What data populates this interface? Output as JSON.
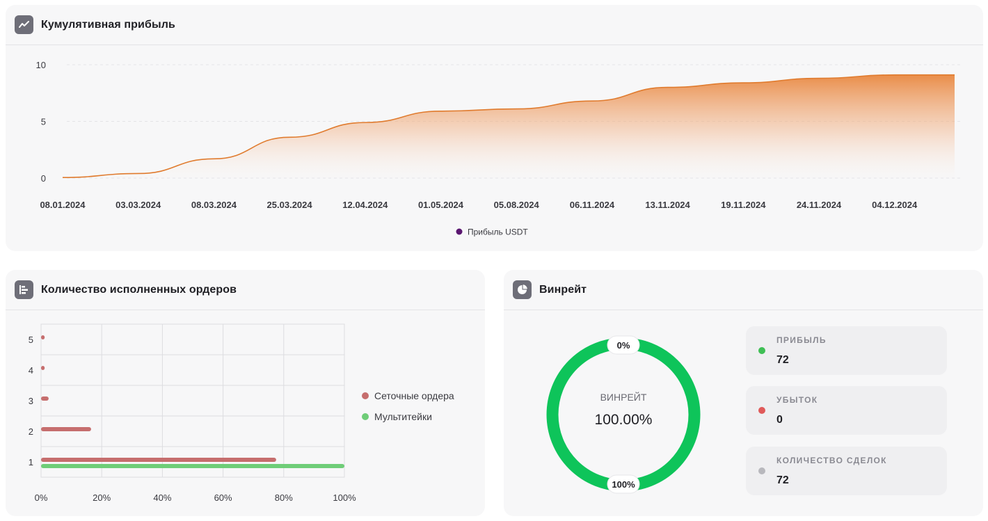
{
  "cards": {
    "cumulative": {
      "title": "Кумулятивная прибыль",
      "icon": "line-chart-icon"
    },
    "orders": {
      "title": "Количество исполненных ордеров",
      "icon": "bar-chart-icon"
    },
    "winrate": {
      "title": "Винрейт",
      "icon": "pie-chart-icon"
    }
  },
  "chart_data": [
    {
      "type": "area",
      "title": "Кумулятивная прибыль",
      "x_ticks": [
        "08.01.2024",
        "03.03.2024",
        "08.03.2024",
        "25.03.2024",
        "12.04.2024",
        "01.05.2024",
        "05.08.2024",
        "06.11.2024",
        "13.11.2024",
        "19.11.2024",
        "24.11.2024",
        "04.12.2024"
      ],
      "y_ticks": [
        "0",
        "5",
        "10"
      ],
      "ylim": [
        0,
        10
      ],
      "grid": "horizontal dashed",
      "legend_position": "bottom",
      "series": [
        {
          "name": "Прибыль USDT",
          "legend_color": "#5a1670",
          "line_color": "#e07b2e",
          "x": [
            "08.01.2024",
            "03.03.2024",
            "08.03.2024",
            "25.03.2024",
            "12.04.2024",
            "01.05.2024",
            "05.08.2024",
            "06.11.2024",
            "13.11.2024",
            "19.11.2024",
            "24.11.2024",
            "04.12.2024"
          ],
          "values": [
            0.05,
            0.4,
            1.7,
            3.6,
            4.9,
            5.9,
            6.1,
            6.8,
            8.0,
            8.4,
            8.8,
            9.1
          ]
        }
      ]
    },
    {
      "type": "bar",
      "orientation": "horizontal",
      "title": "Количество исполненных ордеров",
      "categories": [
        "1",
        "2",
        "3",
        "4",
        "5"
      ],
      "x_ticks": [
        "0%",
        "20%",
        "40%",
        "60%",
        "80%",
        "100%"
      ],
      "xlim": [
        0,
        100
      ],
      "legend_position": "right",
      "series": [
        {
          "name": "Сеточные ордера",
          "color": "#c66e6e",
          "values": [
            77.5,
            16.5,
            2.5,
            1.2,
            1.2
          ]
        },
        {
          "name": "Мультитейки",
          "color": "#6fcd78",
          "values": [
            100,
            0,
            0,
            0,
            0
          ]
        }
      ]
    },
    {
      "type": "pie",
      "title": "Винрейт",
      "center_label": "ВИНРЕЙТ",
      "center_value": "100.00%",
      "top_label": "0%",
      "bottom_label": "100%",
      "slices": [
        {
          "name": "ПРИБЫЛЬ",
          "value": 72,
          "color": "#0ec45a"
        },
        {
          "name": "УБЫТОК",
          "value": 0,
          "color": "#e05a5a"
        }
      ]
    }
  ],
  "winrate_stats": [
    {
      "label": "ПРИБЫЛЬ",
      "value": "72",
      "color": "#3fbf55"
    },
    {
      "label": "УБЫТОК",
      "value": "0",
      "color": "#e05a5a"
    },
    {
      "label": "КОЛИЧЕСТВО СДЕЛОК",
      "value": "72",
      "color": "#b8b8bd"
    }
  ]
}
